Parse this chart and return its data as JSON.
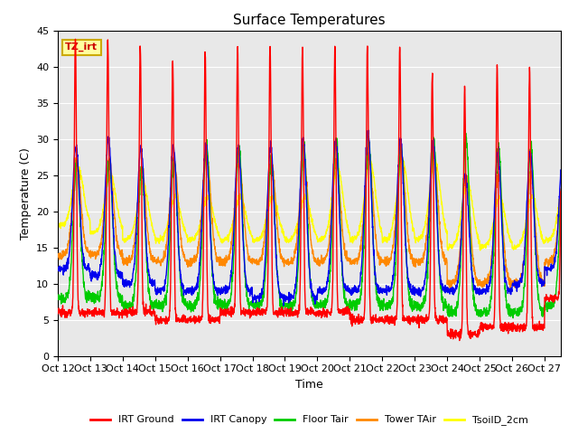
{
  "title": "Surface Temperatures",
  "xlabel": "Time",
  "ylabel": "Temperature (C)",
  "ylim": [
    0,
    45
  ],
  "xlim": [
    0,
    15.5
  ],
  "tick_positions": [
    0,
    1,
    2,
    3,
    4,
    5,
    6,
    7,
    8,
    9,
    10,
    11,
    12,
    13,
    14,
    15
  ],
  "tick_labels": [
    "Oct 12",
    "Oct 13",
    "Oct 14",
    "Oct 15",
    "Oct 16",
    "Oct 17",
    "Oct 18",
    "Oct 19",
    "Oct 20",
    "Oct 21",
    "Oct 22",
    "Oct 23",
    "Oct 24",
    "Oct 25",
    "Oct 26",
    "Oct 27"
  ],
  "annotation_text": "TZ_irt",
  "annotation_box_color": "#FFFFA0",
  "annotation_box_edge": "#CCAA00",
  "series_colors": {
    "IRT Ground": "#FF0000",
    "IRT Canopy": "#0000EE",
    "Floor Tair": "#00CC00",
    "Tower TAir": "#FF8800",
    "TsoilD_2cm": "#FFFF00"
  },
  "background_color": "#E8E8E8",
  "title_fontsize": 11,
  "axis_fontsize": 9,
  "tick_fontsize": 8
}
